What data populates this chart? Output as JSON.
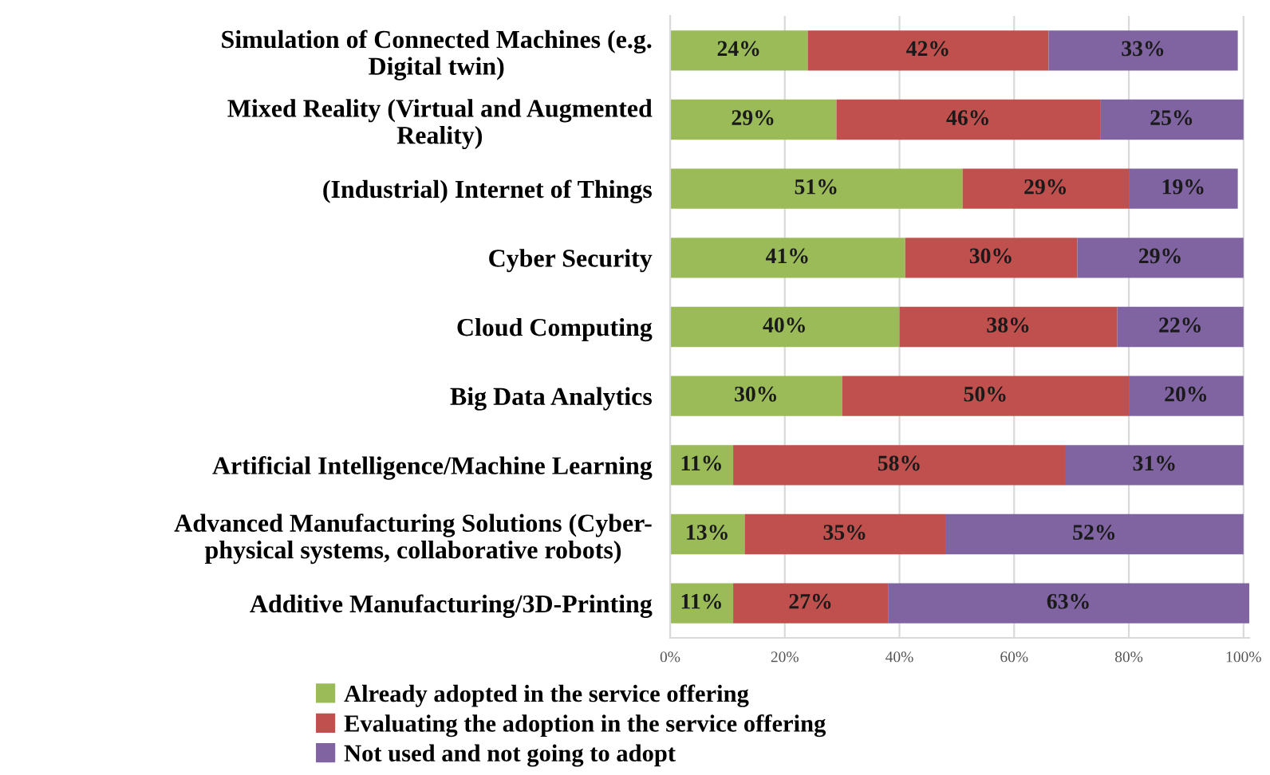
{
  "chart_data": {
    "type": "bar",
    "orientation": "horizontal",
    "stacked": true,
    "categories": [
      "Simulation of Connected Machines (e.g.\nDigital twin)",
      "Mixed Reality (Virtual and Augmented\nReality)",
      "(Industrial) Internet of Things",
      "Cyber Security",
      "Cloud Computing",
      "Big Data Analytics",
      "Artificial Intelligence/Machine Learning",
      "Advanced Manufacturing Solutions (Cyber-\nphysical systems, collaborative robots)",
      "Additive Manufacturing/3D-Printing"
    ],
    "series": [
      {
        "name": "Already adopted in the service offering",
        "color": "#9bbb59",
        "values": [
          24,
          29,
          51,
          41,
          40,
          30,
          11,
          13,
          11
        ],
        "value_labels": [
          "24%",
          "29%",
          "51%",
          "41%",
          "40%",
          "30%",
          "11%",
          "13%",
          "11%"
        ]
      },
      {
        "name": "Evaluating the adoption in the service offering",
        "color": "#c0504d",
        "values": [
          42,
          46,
          29,
          30,
          38,
          50,
          58,
          35,
          27
        ],
        "value_labels": [
          "42%",
          "46%",
          "29%",
          "30%",
          "38%",
          "50%",
          "58%",
          "35%",
          "27%"
        ]
      },
      {
        "name": "Not used and not going to adopt",
        "color": "#8064a2",
        "values": [
          33,
          25,
          19,
          29,
          22,
          20,
          31,
          52,
          63
        ],
        "value_labels": [
          "33%",
          "25%",
          "19%",
          "29%",
          "22%",
          "20%",
          "31%",
          "52%",
          "63%"
        ]
      }
    ],
    "xlim": [
      0,
      101
    ],
    "xticks": [
      {
        "value": 0,
        "label": "0%"
      },
      {
        "value": 20,
        "label": "20%"
      },
      {
        "value": 40,
        "label": "40%"
      },
      {
        "value": 60,
        "label": "60%"
      },
      {
        "value": 80,
        "label": "80%"
      },
      {
        "value": 100,
        "label": "100%"
      }
    ],
    "grid": "x",
    "legend": "bottom"
  }
}
